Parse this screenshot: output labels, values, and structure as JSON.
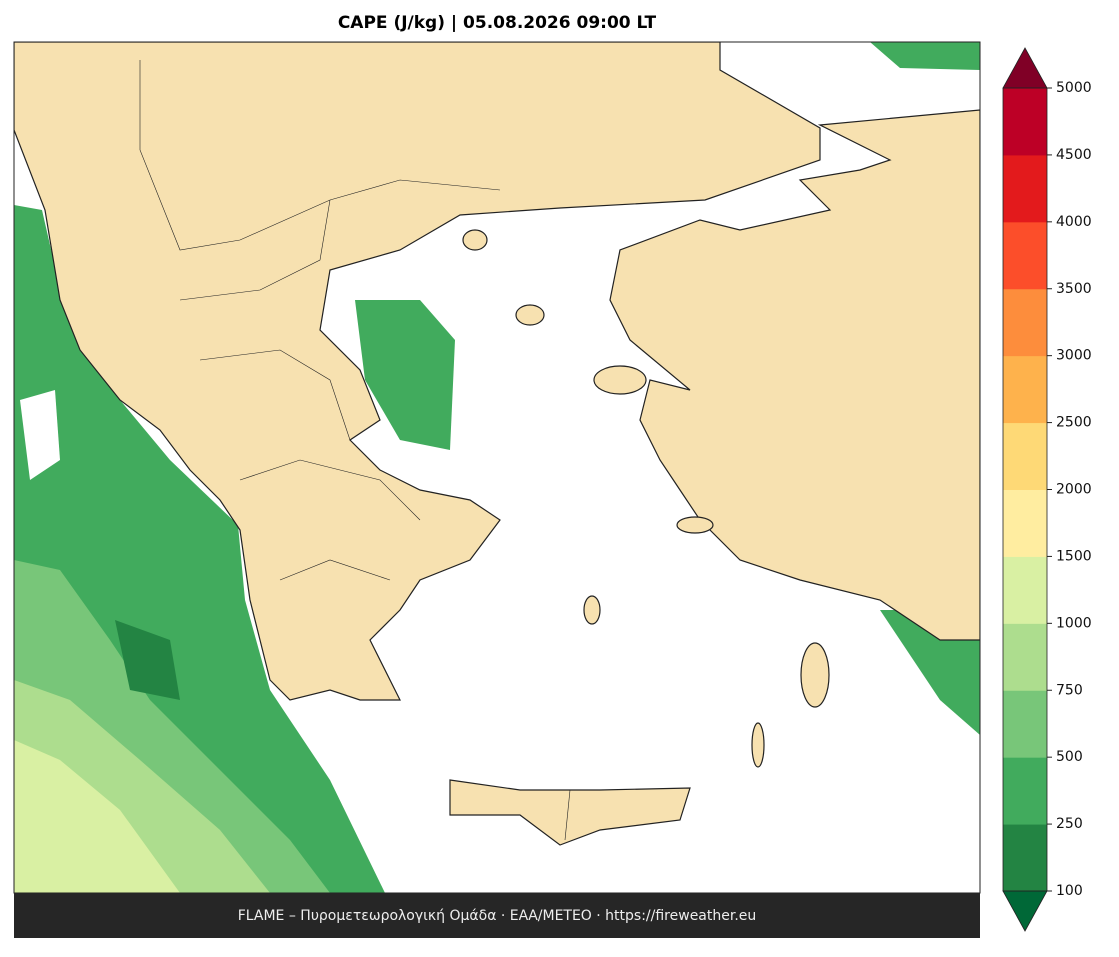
{
  "header": {
    "title": "CAPE (J/kg)  |  05.08.2026 09:00 LT"
  },
  "footer": {
    "text": "FLAME – Πυρομετεωρολογική Ομάδα · ΕΑΑ/METEO · https://fireweather.eu"
  },
  "colorbar": {
    "levels": [
      100,
      250,
      500,
      750,
      1000,
      1500,
      2000,
      2500,
      3000,
      3500,
      4000,
      4500,
      5000
    ],
    "colors": [
      "#238443",
      "#41ab5d",
      "#78c679",
      "#addd8e",
      "#d9f0a3",
      "#ffeda0",
      "#fed976",
      "#feb24c",
      "#fd8d3c",
      "#fc4e2a",
      "#e31a1c",
      "#bd0026"
    ],
    "under_color": "#006837",
    "over_color": "#800026"
  }
}
